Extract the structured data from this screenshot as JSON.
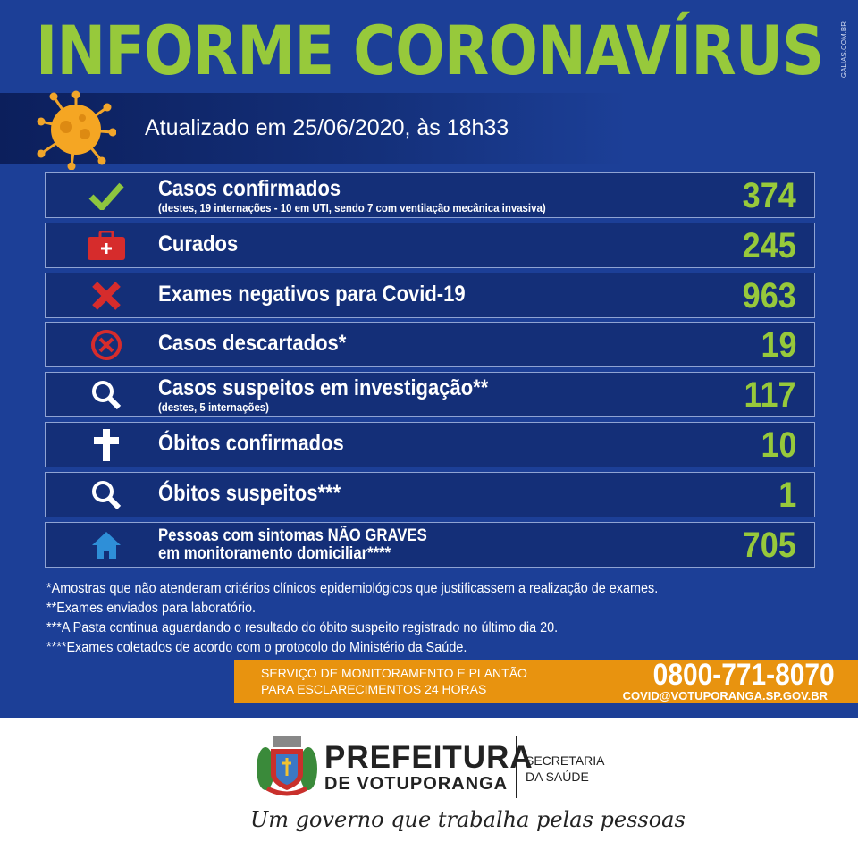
{
  "header": {
    "title": "INFORME CORONAVÍRUS",
    "credit": "GALIAS.COM.BR",
    "updated": "Atualizado em 25/06/2020, às 18h33"
  },
  "colors": {
    "background": "#1c3f97",
    "accent_green": "#97c93b",
    "orange": "#e8930f",
    "row": "#142f78"
  },
  "rows": [
    {
      "icon": "check-icon",
      "label": "Casos confirmados",
      "sub": "(destes, 19 internações - 10 em UTI, sendo 7 com ventilação mecânica invasiva)",
      "value": "374"
    },
    {
      "icon": "first-aid-kit-icon",
      "label": "Curados",
      "value": "245"
    },
    {
      "icon": "x-icon",
      "label": "Exames negativos para Covid-19",
      "value": "963"
    },
    {
      "icon": "circle-x-icon",
      "label": "Casos descartados*",
      "value": "19"
    },
    {
      "icon": "magnifier-icon",
      "label": "Casos suspeitos em investigação**",
      "sub": "(destes, 5 internações)",
      "value": "117"
    },
    {
      "icon": "cross-icon",
      "label": "Óbitos confirmados",
      "value": "10"
    },
    {
      "icon": "magnifier-icon",
      "label": "Óbitos suspeitos***",
      "value": "1"
    },
    {
      "icon": "house-icon",
      "label": "Pessoas com sintomas NÃO GRAVES",
      "label2": "em monitoramento domiciliar****",
      "value": "705"
    }
  ],
  "notes": [
    "*Amostras que não atenderam critérios clínicos epidemiológicos que justificassem a realização de exames.",
    "**Exames enviados para laboratório.",
    "***A Pasta continua aguardando o resultado do óbito suspeito registrado no último dia 20.",
    "****Exames coletados de acordo com o protocolo do Ministério da Saúde."
  ],
  "contact": {
    "service1": "SERVIÇO DE MONITORAMENTO E PLANTÃO",
    "service2": "PARA ESCLARECIMENTOS 24 HORAS",
    "phone": "0800-771-8070",
    "email": "COVID@VOTUPORANGA.SP.GOV.BR"
  },
  "footer": {
    "org1": "PREFEITURA",
    "org2": "DE VOTUPORANGA",
    "dept1": "SECRETARIA",
    "dept2": "DA SAÚDE",
    "slogan": "Um governo que trabalha pelas pessoas"
  }
}
